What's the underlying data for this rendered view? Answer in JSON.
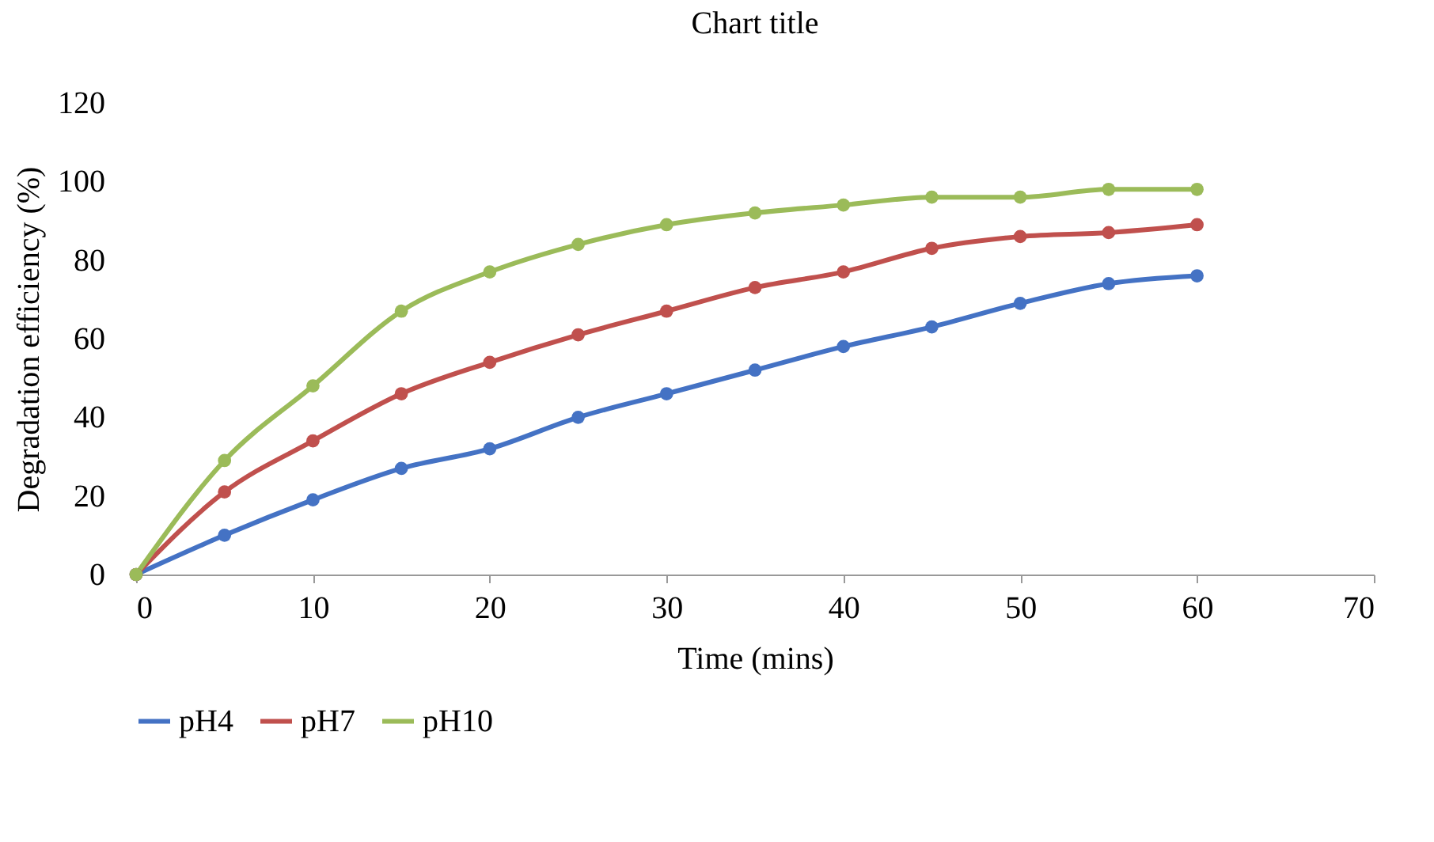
{
  "chart_data": {
    "type": "line",
    "title": "Chart title",
    "xlabel": "Time (mins)",
    "ylabel": "Degradation efficiency (%)",
    "x": [
      0,
      5,
      10,
      15,
      20,
      25,
      30,
      35,
      40,
      45,
      50,
      55,
      60
    ],
    "series": [
      {
        "name": "pH4",
        "color": "#4472c4",
        "values": [
          0,
          10,
          19,
          27,
          32,
          40,
          46,
          52,
          58,
          63,
          69,
          74,
          76
        ]
      },
      {
        "name": "pH7",
        "color": "#c0504d",
        "values": [
          0,
          21,
          34,
          46,
          54,
          61,
          67,
          73,
          77,
          83,
          86,
          87,
          89
        ]
      },
      {
        "name": "pH10",
        "color": "#9bbb59",
        "values": [
          0,
          29,
          48,
          67,
          77,
          84,
          89,
          92,
          94,
          96,
          96,
          98,
          98
        ]
      }
    ],
    "xlim": [
      0,
      70
    ],
    "xticks": [
      0,
      10,
      20,
      30,
      40,
      50,
      60,
      70
    ],
    "ylim": [
      0,
      120
    ],
    "yticks": [
      0,
      20,
      40,
      60,
      80,
      100,
      120
    ],
    "grid": false,
    "legend": "bottom",
    "marker": "circle",
    "line_style": "solid"
  }
}
